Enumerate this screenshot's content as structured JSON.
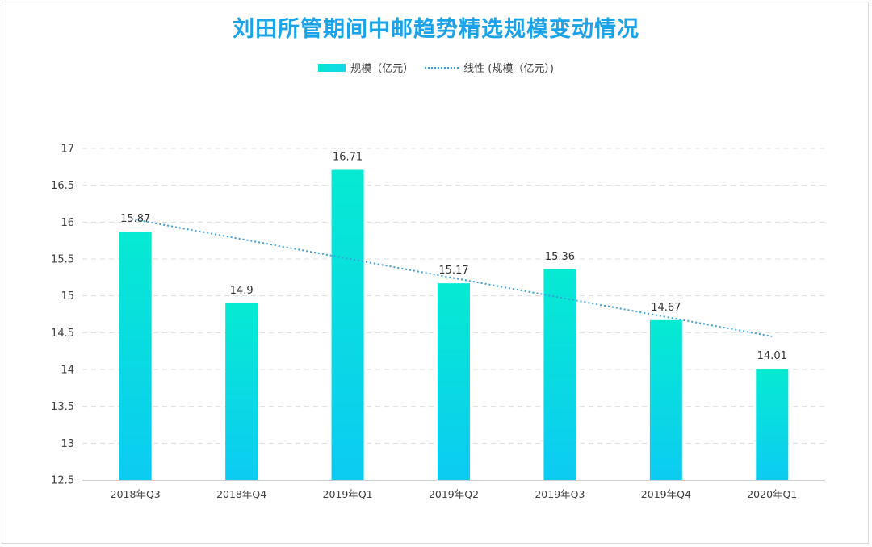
{
  "chart_data": {
    "type": "bar",
    "title": "刘田所管期间中邮趋势精选规模变动情况",
    "categories": [
      "2018年Q3",
      "2018年Q4",
      "2019年Q1",
      "2019年Q2",
      "2019年Q3",
      "2019年Q4",
      "2020年Q1"
    ],
    "series": [
      {
        "name": "规模（亿元）",
        "values": [
          15.87,
          14.9,
          16.71,
          15.17,
          15.36,
          14.67,
          14.01
        ]
      }
    ],
    "trendline": {
      "name": "线性 (规模（亿元）)",
      "type": "linear"
    },
    "ylim": [
      12.5,
      17
    ],
    "yticks": [
      "12.5",
      "13",
      "13.5",
      "14",
      "14.5",
      "15",
      "15.5",
      "16",
      "16.5",
      "17"
    ],
    "grid": true,
    "legend_position": "top",
    "colors": {
      "bar_top": "#06ead2",
      "bar_bottom": "#0ccbf2",
      "trendline": "#3b9fd8",
      "title": "#1aa3e8"
    }
  }
}
